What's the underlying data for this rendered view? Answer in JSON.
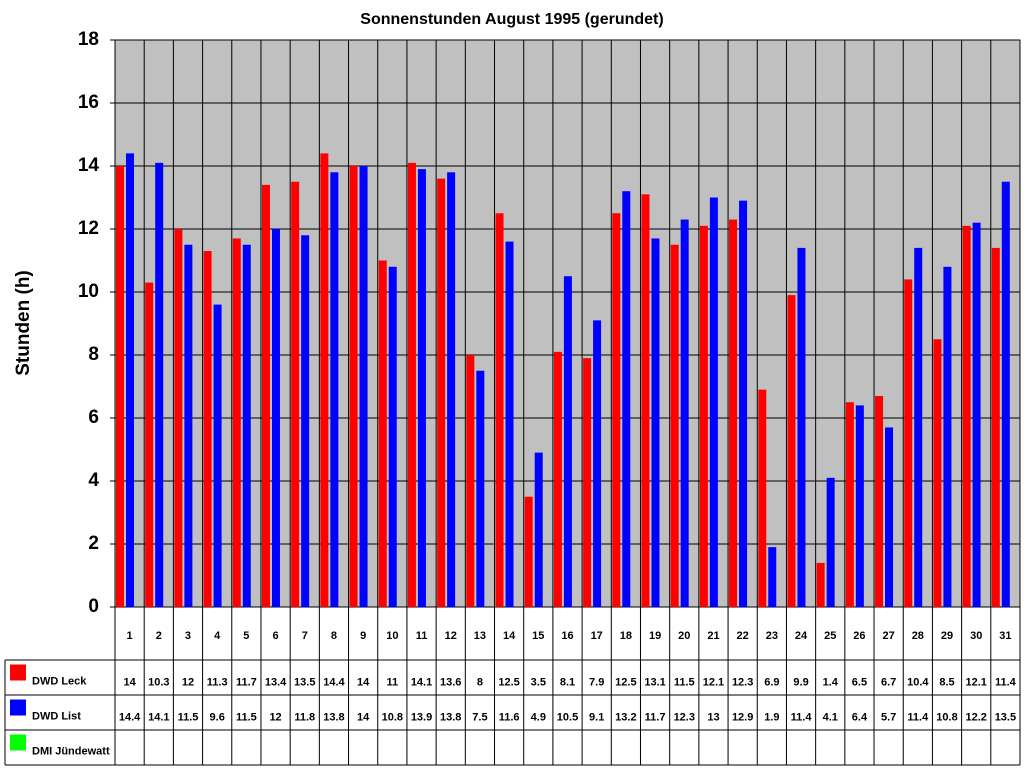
{
  "chart_data": {
    "type": "bar",
    "title": "Sonnenstunden August 1995 (gerundet)",
    "y_label": "Stunden (h)",
    "categories": [
      "1",
      "2",
      "3",
      "4",
      "5",
      "6",
      "7",
      "8",
      "9",
      "10",
      "11",
      "12",
      "13",
      "14",
      "15",
      "16",
      "17",
      "18",
      "19",
      "20",
      "21",
      "22",
      "23",
      "24",
      "25",
      "26",
      "27",
      "28",
      "29",
      "30",
      "31"
    ],
    "series": [
      {
        "name": "DWD Leck",
        "color": "#ff0000",
        "values": [
          14,
          10.3,
          12,
          11.3,
          11.7,
          13.4,
          13.5,
          14.4,
          14,
          11,
          14.1,
          13.6,
          8,
          12.5,
          3.5,
          8.1,
          7.9,
          12.5,
          13.1,
          11.5,
          12.1,
          12.3,
          6.9,
          9.9,
          1.4,
          6.5,
          6.7,
          10.4,
          8.5,
          12.1,
          11.4
        ]
      },
      {
        "name": "DWD List",
        "color": "#0000ff",
        "values": [
          14.4,
          14.1,
          11.5,
          9.6,
          11.5,
          12,
          11.8,
          13.8,
          14,
          10.8,
          13.9,
          13.8,
          7.5,
          11.6,
          4.9,
          10.5,
          9.1,
          13.2,
          11.7,
          12.3,
          13,
          12.9,
          1.9,
          11.4,
          4.1,
          6.4,
          5.7,
          11.4,
          10.8,
          12.2,
          13.5
        ]
      },
      {
        "name": "DMI Jündewatt",
        "color": "#00ff00",
        "values": [
          null,
          null,
          null,
          null,
          null,
          null,
          null,
          null,
          null,
          null,
          null,
          null,
          null,
          null,
          null,
          null,
          null,
          null,
          null,
          null,
          null,
          null,
          null,
          null,
          null,
          null,
          null,
          null,
          null,
          null,
          null
        ]
      }
    ],
    "ylim": [
      0,
      18
    ],
    "yticks": [
      0,
      2,
      4,
      6,
      8,
      10,
      12,
      14,
      16,
      18
    ],
    "grid": true,
    "plot_background": "#c0c0c0"
  }
}
